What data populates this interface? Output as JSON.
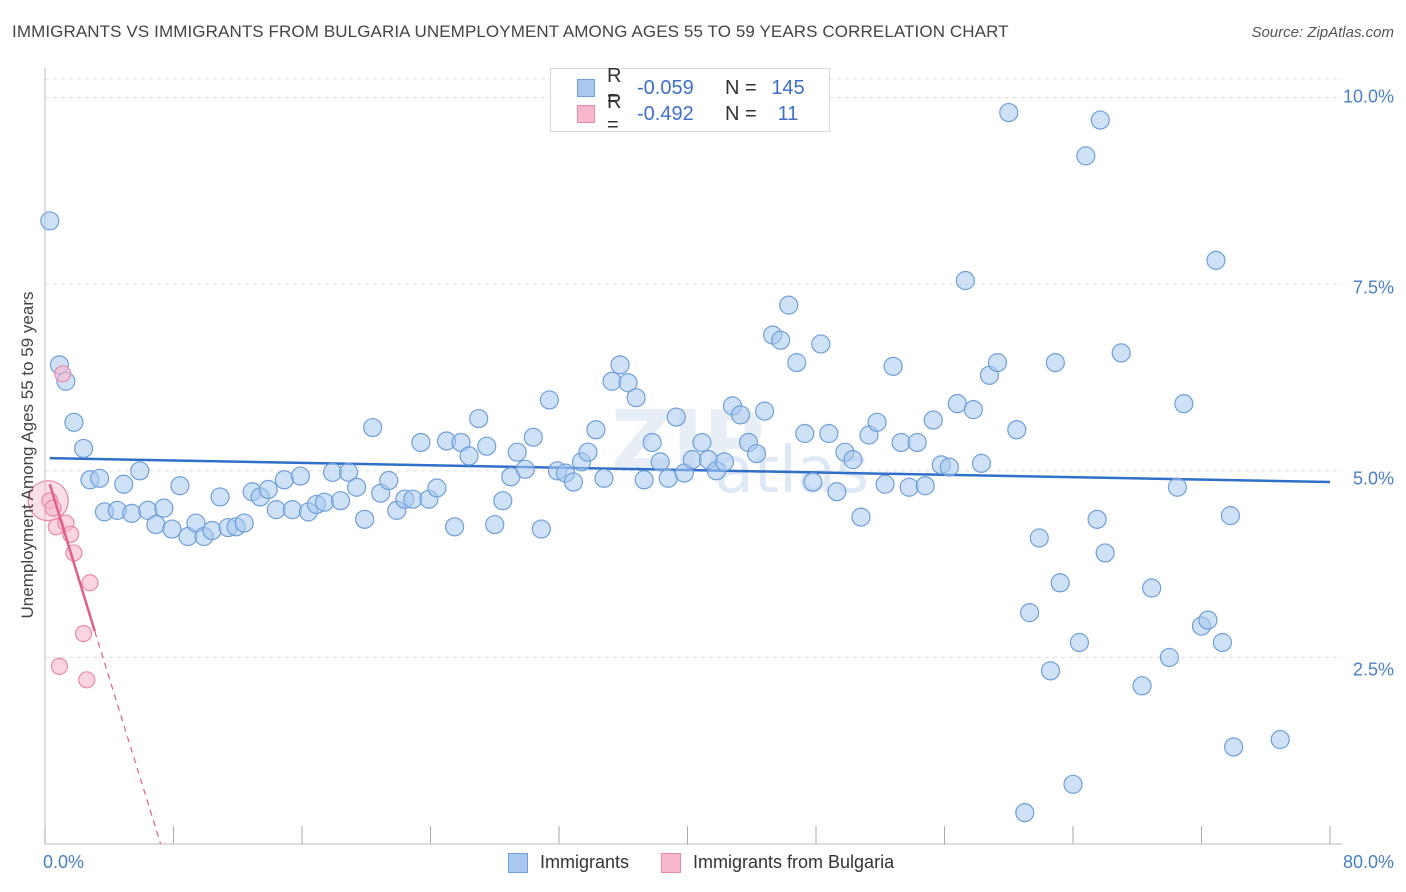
{
  "title": "IMMIGRANTS VS IMMIGRANTS FROM BULGARIA UNEMPLOYMENT AMONG AGES 55 TO 59 YEARS CORRELATION CHART",
  "source": "Source: ZipAtlas.com",
  "colors": {
    "blue_fill": "#a8c8f0",
    "blue_stroke": "#6f9fd8",
    "blue_line": "#2f6fc8",
    "pink_fill": "#f7b8cc",
    "pink_stroke": "#e889a8",
    "pink_line": "#e0608a",
    "grid": "#dddddd",
    "tick_text": "#4a80c4"
  },
  "legend_top": [
    {
      "r_label": "R =",
      "r_value": "-0.059",
      "n_label": "N =",
      "n_value": "145"
    },
    {
      "r_label": "R =",
      "r_value": "-0.492",
      "n_label": "N =",
      "n_value": "11"
    }
  ],
  "legend_bottom": [
    {
      "label": "Immigrants"
    },
    {
      "label": "Immigrants from Bulgaria"
    }
  ],
  "chart_data": {
    "type": "scatter",
    "title": "IMMIGRANTS VS IMMIGRANTS FROM BULGARIA UNEMPLOYMENT AMONG AGES 55 TO 59 YEARS CORRELATION CHART",
    "xlabel": "",
    "ylabel": "Unemployment Among Ages 55 to 59 years",
    "xlim": [
      0,
      80
    ],
    "ylim": [
      0,
      10.25
    ],
    "x_tick_labels": [
      "0.0%",
      "80.0%"
    ],
    "y_ticks": [
      2.5,
      5.0,
      7.5,
      10.0
    ],
    "y_tick_labels": [
      "2.5%",
      "5.0%",
      "7.5%",
      "10.0%"
    ],
    "grid": true,
    "legend_position": "top-center",
    "watermark": "ZIPatlas",
    "series": [
      {
        "name": "Immigrants",
        "color": "#a8c8f0",
        "trend": {
          "x": [
            0.3,
            80
          ],
          "y": [
            5.17,
            4.85
          ]
        },
        "points": [
          [
            0.3,
            8.35
          ],
          [
            0.9,
            6.42
          ],
          [
            1.3,
            6.2
          ],
          [
            1.8,
            5.65
          ],
          [
            2.4,
            5.3
          ],
          [
            2.8,
            4.88
          ],
          [
            3.4,
            4.9
          ],
          [
            3.7,
            4.45
          ],
          [
            4.5,
            4.47
          ],
          [
            4.9,
            4.82
          ],
          [
            5.4,
            4.43
          ],
          [
            5.9,
            5.0
          ],
          [
            6.4,
            4.47
          ],
          [
            6.9,
            4.28
          ],
          [
            7.4,
            4.5
          ],
          [
            7.9,
            4.22
          ],
          [
            8.4,
            4.8
          ],
          [
            8.9,
            4.12
          ],
          [
            9.4,
            4.3
          ],
          [
            9.9,
            4.12
          ],
          [
            10.4,
            4.2
          ],
          [
            10.9,
            4.65
          ],
          [
            11.4,
            4.24
          ],
          [
            11.9,
            4.25
          ],
          [
            12.4,
            4.3
          ],
          [
            12.9,
            4.72
          ],
          [
            13.4,
            4.65
          ],
          [
            13.9,
            4.75
          ],
          [
            14.4,
            4.48
          ],
          [
            14.9,
            4.88
          ],
          [
            15.4,
            4.48
          ],
          [
            15.9,
            4.93
          ],
          [
            16.4,
            4.45
          ],
          [
            16.9,
            4.55
          ],
          [
            17.4,
            4.58
          ],
          [
            17.9,
            4.98
          ],
          [
            18.4,
            4.6
          ],
          [
            18.9,
            4.98
          ],
          [
            19.4,
            4.78
          ],
          [
            19.9,
            4.35
          ],
          [
            20.4,
            5.58
          ],
          [
            20.9,
            4.7
          ],
          [
            21.4,
            4.87
          ],
          [
            21.9,
            4.47
          ],
          [
            22.4,
            4.62
          ],
          [
            22.9,
            4.62
          ],
          [
            23.4,
            5.38
          ],
          [
            23.9,
            4.62
          ],
          [
            24.4,
            4.77
          ],
          [
            25.0,
            5.4
          ],
          [
            25.5,
            4.25
          ],
          [
            25.9,
            5.38
          ],
          [
            26.4,
            5.2
          ],
          [
            27.0,
            5.7
          ],
          [
            27.5,
            5.33
          ],
          [
            28.0,
            4.28
          ],
          [
            28.5,
            4.6
          ],
          [
            29.0,
            4.92
          ],
          [
            29.4,
            5.25
          ],
          [
            29.9,
            5.02
          ],
          [
            30.4,
            5.45
          ],
          [
            30.9,
            4.22
          ],
          [
            31.4,
            5.95
          ],
          [
            31.9,
            5.0
          ],
          [
            32.4,
            4.97
          ],
          [
            32.9,
            4.85
          ],
          [
            33.4,
            5.12
          ],
          [
            33.8,
            5.25
          ],
          [
            34.3,
            5.55
          ],
          [
            34.8,
            4.9
          ],
          [
            35.3,
            6.2
          ],
          [
            35.8,
            6.42
          ],
          [
            36.3,
            6.18
          ],
          [
            36.8,
            5.98
          ],
          [
            37.3,
            4.88
          ],
          [
            37.8,
            5.38
          ],
          [
            38.3,
            5.12
          ],
          [
            38.8,
            4.9
          ],
          [
            39.3,
            5.72
          ],
          [
            39.8,
            4.97
          ],
          [
            40.3,
            5.15
          ],
          [
            40.9,
            5.38
          ],
          [
            41.3,
            5.15
          ],
          [
            41.8,
            5.0
          ],
          [
            42.3,
            5.12
          ],
          [
            42.8,
            5.87
          ],
          [
            43.3,
            5.75
          ],
          [
            43.8,
            5.38
          ],
          [
            44.3,
            5.23
          ],
          [
            44.8,
            5.8
          ],
          [
            45.3,
            6.82
          ],
          [
            45.8,
            6.75
          ],
          [
            46.3,
            7.22
          ],
          [
            46.8,
            6.45
          ],
          [
            47.3,
            5.5
          ],
          [
            47.8,
            4.85
          ],
          [
            48.3,
            6.7
          ],
          [
            48.8,
            5.5
          ],
          [
            49.3,
            4.72
          ],
          [
            49.8,
            5.25
          ],
          [
            50.3,
            5.15
          ],
          [
            50.8,
            4.38
          ],
          [
            51.3,
            5.48
          ],
          [
            51.8,
            5.65
          ],
          [
            52.3,
            4.82
          ],
          [
            52.8,
            6.4
          ],
          [
            53.3,
            5.38
          ],
          [
            53.8,
            4.78
          ],
          [
            54.3,
            5.38
          ],
          [
            54.8,
            4.8
          ],
          [
            55.3,
            5.68
          ],
          [
            55.8,
            5.08
          ],
          [
            56.3,
            5.05
          ],
          [
            56.8,
            5.9
          ],
          [
            57.3,
            7.55
          ],
          [
            57.8,
            5.82
          ],
          [
            58.3,
            5.1
          ],
          [
            58.8,
            6.28
          ],
          [
            59.3,
            6.45
          ],
          [
            60.0,
            9.8
          ],
          [
            60.5,
            5.55
          ],
          [
            61.0,
            0.42
          ],
          [
            61.3,
            3.1
          ],
          [
            61.9,
            4.1
          ],
          [
            62.6,
            2.32
          ],
          [
            62.9,
            6.45
          ],
          [
            63.2,
            3.5
          ],
          [
            64.0,
            0.8
          ],
          [
            64.4,
            2.7
          ],
          [
            64.8,
            9.22
          ],
          [
            65.5,
            4.35
          ],
          [
            65.7,
            9.7
          ],
          [
            66.0,
            3.9
          ],
          [
            67.0,
            6.58
          ],
          [
            68.3,
            2.12
          ],
          [
            68.9,
            3.43
          ],
          [
            70.0,
            2.5
          ],
          [
            70.5,
            4.78
          ],
          [
            70.9,
            5.9
          ],
          [
            72.0,
            2.92
          ],
          [
            72.4,
            3.0
          ],
          [
            72.9,
            7.82
          ],
          [
            73.3,
            2.7
          ],
          [
            73.8,
            4.4
          ],
          [
            74.0,
            1.3
          ],
          [
            76.9,
            1.4
          ]
        ]
      },
      {
        "name": "Immigrants from Bulgaria",
        "color": "#f7b8cc",
        "trend": {
          "x": [
            0.3,
            3.1
          ],
          "y": [
            4.82,
            2.85
          ],
          "extended_to": [
            7.2,
            0
          ]
        },
        "points": [
          [
            0.3,
            4.6
          ],
          [
            0.5,
            4.5
          ],
          [
            0.7,
            4.25
          ],
          [
            1.1,
            6.3
          ],
          [
            1.3,
            4.3
          ],
          [
            1.6,
            4.15
          ],
          [
            1.8,
            3.9
          ],
          [
            2.4,
            2.82
          ],
          [
            2.8,
            3.5
          ],
          [
            0.9,
            2.38
          ],
          [
            2.6,
            2.2
          ]
        ]
      }
    ]
  }
}
